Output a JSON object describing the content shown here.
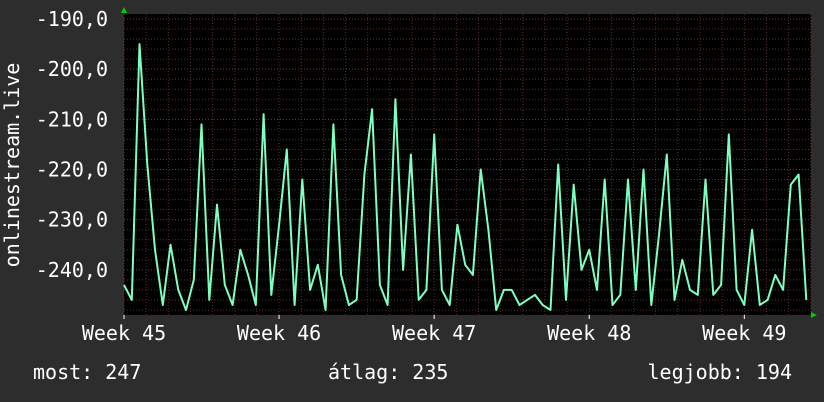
{
  "chart_data": {
    "type": "line",
    "ylabel": "onlinestream.live",
    "ylim": [
      -249,
      -189
    ],
    "yticks": [
      -190,
      -200,
      -210,
      -220,
      -230,
      -240
    ],
    "y_tick_labels": [
      "-190,0",
      "-200,0",
      "-210,0",
      "-220,0",
      "-230,0",
      "-240,0"
    ],
    "xticks": [
      45,
      46,
      47,
      48,
      49
    ],
    "x_tick_labels": [
      "Week  45",
      "Week  46",
      "Week  47",
      "Week  48",
      "Week  49"
    ],
    "xlim": [
      45,
      49.43
    ],
    "grid": true,
    "colors": {
      "line": "#7fffbf",
      "background": "#000000",
      "frame": "#2d2d2d",
      "grid": "#5a2e2e",
      "arrow": "#00cc00"
    },
    "series": [
      {
        "x": [
          45.0,
          45.05,
          45.1,
          45.15,
          45.2,
          45.25,
          45.3,
          45.35,
          45.4,
          45.45,
          45.5,
          45.55,
          45.6,
          45.65,
          45.7,
          45.75,
          45.8,
          45.85,
          45.9,
          45.95,
          46.0,
          46.05,
          46.1,
          46.15,
          46.2,
          46.25,
          46.3,
          46.35,
          46.4,
          46.45,
          46.5,
          46.55,
          46.6,
          46.65,
          46.7,
          46.75,
          46.8,
          46.85,
          46.9,
          46.95,
          47.0,
          47.05,
          47.1,
          47.15,
          47.2,
          47.25,
          47.3,
          47.35,
          47.4,
          47.45,
          47.5,
          47.55,
          47.6,
          47.65,
          47.7,
          47.75,
          47.8,
          47.85,
          47.9,
          47.95,
          48.0,
          48.05,
          48.1,
          48.15,
          48.2,
          48.25,
          48.3,
          48.35,
          48.4,
          48.45,
          48.5,
          48.55,
          48.6,
          48.65,
          48.7,
          48.75,
          48.8,
          48.85,
          48.9,
          48.95,
          49.0,
          49.05,
          49.1,
          49.15,
          49.2,
          49.25,
          49.3,
          49.35,
          49.4
        ],
        "y": [
          -243,
          -246,
          -195,
          -219,
          -236,
          -247,
          -235,
          -244,
          -248,
          -242,
          -211,
          -246,
          -227,
          -243,
          -247,
          -236,
          -241,
          -247,
          -209,
          -245,
          -231,
          -216,
          -247,
          -222,
          -244,
          -239,
          -248,
          -211,
          -241,
          -247,
          -246,
          -221,
          -208,
          -243,
          -247,
          -206,
          -240,
          -217,
          -246,
          -244,
          -213,
          -244,
          -247,
          -231,
          -239,
          -241,
          -220,
          -232,
          -248,
          -244,
          -244,
          -247,
          -246,
          -245,
          -247,
          -248,
          -219,
          -246,
          -223,
          -240,
          -236,
          -244,
          -222,
          -247,
          -245,
          -222,
          -244,
          -220,
          -247,
          -233,
          -217,
          -246,
          -238,
          -244,
          -245,
          -222,
          -245,
          -243,
          -213,
          -244,
          -247,
          -232,
          -247,
          -246,
          -241,
          -244,
          -223,
          -221,
          -246
        ]
      }
    ]
  },
  "stats": {
    "now": "most: 247",
    "avg": "átlag: 235",
    "max": "legjobb: 194"
  }
}
